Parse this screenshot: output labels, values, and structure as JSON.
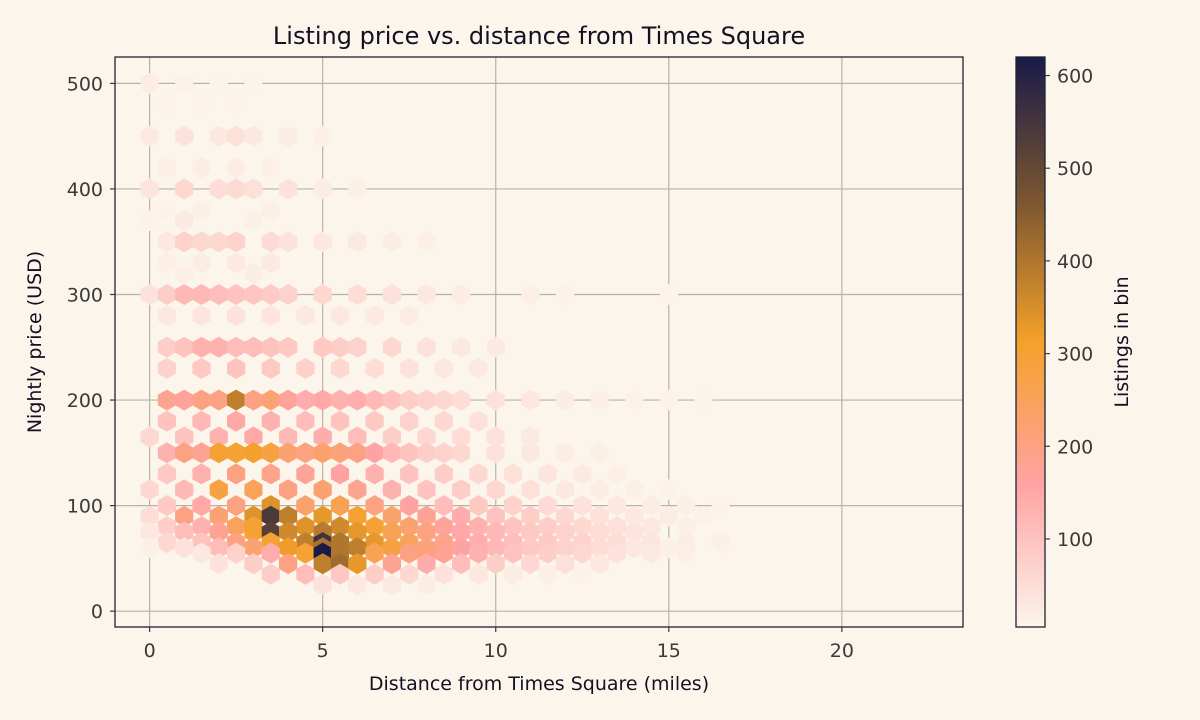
{
  "chart_data": {
    "type": "heatmap",
    "subtype": "hexbin",
    "title": "Listing price vs. distance from Times Square",
    "xlabel": "Distance from Times Square (miles)",
    "ylabel": "Nightly price (USD)",
    "xlim": [
      -1,
      23.5
    ],
    "ylim": [
      -15,
      525
    ],
    "xticks": [
      0,
      5,
      10,
      15,
      20
    ],
    "yticks": [
      0,
      100,
      200,
      300,
      400,
      500
    ],
    "grid": true,
    "colorbar": {
      "label": "Listings in bin",
      "range": [
        5,
        620
      ],
      "ticks": [
        100,
        200,
        300,
        400,
        500,
        600
      ],
      "colors": [
        "#fcf5eb",
        "#ffa3a3",
        "#f4a12a",
        "#7a5530",
        "#1a1a4a"
      ]
    },
    "bins": [
      [
        0,
        500,
        20
      ],
      [
        1,
        500,
        10
      ],
      [
        2,
        500,
        8
      ],
      [
        3,
        500,
        6
      ],
      [
        0.5,
        480,
        8
      ],
      [
        1.5,
        480,
        8
      ],
      [
        2.5,
        480,
        6
      ],
      [
        0,
        450,
        25
      ],
      [
        1,
        450,
        40
      ],
      [
        2,
        450,
        30
      ],
      [
        2.5,
        450,
        45
      ],
      [
        3,
        450,
        30
      ],
      [
        4,
        450,
        20
      ],
      [
        5,
        450,
        15
      ],
      [
        0.5,
        420,
        15
      ],
      [
        1.5,
        420,
        20
      ],
      [
        2.5,
        420,
        20
      ],
      [
        3.5,
        420,
        15
      ],
      [
        0,
        400,
        35
      ],
      [
        1,
        400,
        60
      ],
      [
        2,
        400,
        50
      ],
      [
        2.5,
        400,
        55
      ],
      [
        3,
        400,
        45
      ],
      [
        4,
        400,
        40
      ],
      [
        5,
        400,
        20
      ],
      [
        6,
        400,
        15
      ],
      [
        0.5,
        380,
        10
      ],
      [
        1.5,
        380,
        15
      ],
      [
        3.5,
        380,
        15
      ],
      [
        0,
        370,
        10
      ],
      [
        1,
        370,
        25
      ],
      [
        3,
        370,
        15
      ],
      [
        0.5,
        350,
        30
      ],
      [
        1,
        350,
        70
      ],
      [
        1.5,
        350,
        60
      ],
      [
        2,
        350,
        60
      ],
      [
        2.5,
        350,
        70
      ],
      [
        3.5,
        350,
        55
      ],
      [
        4,
        350,
        40
      ],
      [
        5,
        350,
        30
      ],
      [
        6,
        350,
        25
      ],
      [
        7,
        350,
        20
      ],
      [
        8,
        350,
        15
      ],
      [
        0.5,
        330,
        15
      ],
      [
        1.5,
        330,
        20
      ],
      [
        2.5,
        330,
        25
      ],
      [
        3.5,
        330,
        25
      ],
      [
        1,
        320,
        15
      ],
      [
        3,
        320,
        20
      ],
      [
        0,
        300,
        40
      ],
      [
        0.5,
        300,
        80
      ],
      [
        1,
        300,
        120
      ],
      [
        1.5,
        300,
        120
      ],
      [
        2,
        300,
        110
      ],
      [
        2.5,
        300,
        100
      ],
      [
        3,
        300,
        95
      ],
      [
        3.5,
        300,
        85
      ],
      [
        4,
        300,
        70
      ],
      [
        5,
        300,
        60
      ],
      [
        6,
        300,
        50
      ],
      [
        7,
        300,
        40
      ],
      [
        8,
        300,
        30
      ],
      [
        9,
        300,
        20
      ],
      [
        11,
        300,
        15
      ],
      [
        12,
        300,
        10
      ],
      [
        15,
        300,
        8
      ],
      [
        0.5,
        280,
        30
      ],
      [
        1.5,
        280,
        35
      ],
      [
        2.5,
        280,
        40
      ],
      [
        3.5,
        280,
        35
      ],
      [
        4.5,
        280,
        30
      ],
      [
        5.5,
        280,
        30
      ],
      [
        6.5,
        280,
        25
      ],
      [
        7.5,
        280,
        20
      ],
      [
        0.5,
        250,
        80
      ],
      [
        1,
        250,
        100
      ],
      [
        1.5,
        250,
        130
      ],
      [
        2,
        250,
        130
      ],
      [
        2.5,
        250,
        110
      ],
      [
        3,
        250,
        110
      ],
      [
        3.5,
        250,
        100
      ],
      [
        4,
        250,
        90
      ],
      [
        5,
        250,
        90
      ],
      [
        5.5,
        250,
        80
      ],
      [
        6,
        250,
        70
      ],
      [
        7,
        250,
        60
      ],
      [
        8,
        250,
        40
      ],
      [
        9,
        250,
        30
      ],
      [
        10,
        250,
        25
      ],
      [
        0.5,
        230,
        70
      ],
      [
        1.5,
        230,
        90
      ],
      [
        2.5,
        230,
        100
      ],
      [
        3.5,
        230,
        90
      ],
      [
        4.5,
        230,
        75
      ],
      [
        5.5,
        230,
        60
      ],
      [
        6.5,
        230,
        50
      ],
      [
        7.5,
        230,
        40
      ],
      [
        8.5,
        230,
        30
      ],
      [
        9.5,
        230,
        25
      ],
      [
        0.5,
        200,
        180
      ],
      [
        1,
        200,
        170
      ],
      [
        1.5,
        200,
        200
      ],
      [
        2,
        200,
        200
      ],
      [
        2.5,
        200,
        380
      ],
      [
        3,
        200,
        200
      ],
      [
        3.5,
        200,
        220
      ],
      [
        4,
        200,
        170
      ],
      [
        4.5,
        200,
        140
      ],
      [
        5,
        200,
        150
      ],
      [
        5.5,
        200,
        130
      ],
      [
        6,
        200,
        140
      ],
      [
        6.5,
        200,
        120
      ],
      [
        7,
        200,
        100
      ],
      [
        7.5,
        200,
        80
      ],
      [
        8,
        200,
        70
      ],
      [
        8.5,
        200,
        60
      ],
      [
        9,
        200,
        50
      ],
      [
        10,
        200,
        40
      ],
      [
        11,
        200,
        30
      ],
      [
        12,
        200,
        20
      ],
      [
        13,
        200,
        15
      ],
      [
        14,
        200,
        10
      ],
      [
        15,
        200,
        10
      ],
      [
        16,
        200,
        8
      ],
      [
        0.5,
        180,
        100
      ],
      [
        1.5,
        180,
        120
      ],
      [
        2.5,
        180,
        150
      ],
      [
        3.5,
        180,
        130
      ],
      [
        4.5,
        180,
        110
      ],
      [
        5.5,
        180,
        100
      ],
      [
        6.5,
        180,
        90
      ],
      [
        7.5,
        180,
        70
      ],
      [
        8.5,
        180,
        60
      ],
      [
        9.5,
        180,
        45
      ],
      [
        0,
        165,
        60
      ],
      [
        1,
        165,
        100
      ],
      [
        2,
        165,
        130
      ],
      [
        3,
        165,
        150
      ],
      [
        4,
        165,
        120
      ],
      [
        5,
        165,
        140
      ],
      [
        6,
        165,
        110
      ],
      [
        7,
        165,
        80
      ],
      [
        8,
        165,
        60
      ],
      [
        9,
        165,
        50
      ],
      [
        10,
        165,
        40
      ],
      [
        11,
        165,
        25
      ],
      [
        0.5,
        150,
        130
      ],
      [
        1,
        150,
        200
      ],
      [
        1.5,
        150,
        180
      ],
      [
        2,
        150,
        300
      ],
      [
        2.5,
        150,
        300
      ],
      [
        3,
        150,
        310
      ],
      [
        3.5,
        150,
        280
      ],
      [
        4,
        150,
        220
      ],
      [
        4.5,
        150,
        200
      ],
      [
        5,
        150,
        230
      ],
      [
        5.5,
        150,
        210
      ],
      [
        6,
        150,
        200
      ],
      [
        6.5,
        150,
        160
      ],
      [
        7,
        150,
        120
      ],
      [
        7.5,
        150,
        100
      ],
      [
        8,
        150,
        80
      ],
      [
        8.5,
        150,
        70
      ],
      [
        9,
        150,
        60
      ],
      [
        10,
        150,
        40
      ],
      [
        11,
        150,
        30
      ],
      [
        12,
        150,
        20
      ],
      [
        13,
        150,
        15
      ],
      [
        0.5,
        130,
        90
      ],
      [
        1.5,
        130,
        130
      ],
      [
        2.5,
        130,
        200
      ],
      [
        3.5,
        130,
        190
      ],
      [
        4.5,
        130,
        170
      ],
      [
        5.5,
        130,
        160
      ],
      [
        6.5,
        130,
        130
      ],
      [
        7.5,
        130,
        100
      ],
      [
        8.5,
        130,
        80
      ],
      [
        9.5,
        130,
        60
      ],
      [
        10.5,
        130,
        45
      ],
      [
        11.5,
        130,
        35
      ],
      [
        12.5,
        130,
        25
      ],
      [
        13.5,
        130,
        15
      ],
      [
        0,
        115,
        60
      ],
      [
        1,
        115,
        120
      ],
      [
        2,
        115,
        280
      ],
      [
        3,
        115,
        250
      ],
      [
        4,
        115,
        200
      ],
      [
        5,
        115,
        220
      ],
      [
        6,
        115,
        180
      ],
      [
        7,
        115,
        130
      ],
      [
        8,
        115,
        100
      ],
      [
        9,
        115,
        80
      ],
      [
        10,
        115,
        60
      ],
      [
        11,
        115,
        45
      ],
      [
        12,
        115,
        30
      ],
      [
        13,
        115,
        20
      ],
      [
        14,
        115,
        15
      ],
      [
        15,
        115,
        10
      ],
      [
        0.5,
        100,
        90
      ],
      [
        1.5,
        100,
        150
      ],
      [
        2.5,
        100,
        200
      ],
      [
        3.5,
        100,
        340
      ],
      [
        4.5,
        100,
        230
      ],
      [
        5.5,
        100,
        260
      ],
      [
        6.5,
        100,
        200
      ],
      [
        7.5,
        100,
        160
      ],
      [
        8.5,
        100,
        110
      ],
      [
        9.5,
        100,
        90
      ],
      [
        10.5,
        100,
        70
      ],
      [
        11.5,
        100,
        55
      ],
      [
        12.5,
        100,
        40
      ],
      [
        13.5,
        100,
        30
      ],
      [
        14.5,
        100,
        20
      ],
      [
        15.5,
        100,
        15
      ],
      [
        16.5,
        100,
        10
      ],
      [
        0,
        90,
        50
      ],
      [
        1,
        90,
        200
      ],
      [
        2,
        90,
        220
      ],
      [
        3,
        90,
        340
      ],
      [
        3.5,
        90,
        540
      ],
      [
        4,
        90,
        380
      ],
      [
        5,
        90,
        330
      ],
      [
        6,
        90,
        300
      ],
      [
        7,
        90,
        230
      ],
      [
        8,
        90,
        180
      ],
      [
        9,
        90,
        140
      ],
      [
        10,
        90,
        100
      ],
      [
        11,
        90,
        80
      ],
      [
        12,
        90,
        60
      ],
      [
        13,
        90,
        45
      ],
      [
        14,
        90,
        30
      ],
      [
        15,
        90,
        20
      ],
      [
        16,
        90,
        10
      ],
      [
        0.5,
        80,
        80
      ],
      [
        1.5,
        80,
        130
      ],
      [
        2.5,
        80,
        250
      ],
      [
        3,
        80,
        300
      ],
      [
        4.5,
        80,
        340
      ],
      [
        5.5,
        80,
        360
      ],
      [
        6.5,
        80,
        300
      ],
      [
        7.5,
        80,
        220
      ],
      [
        8.5,
        80,
        170
      ],
      [
        9.5,
        80,
        130
      ],
      [
        10.5,
        80,
        100
      ],
      [
        11.5,
        80,
        80
      ],
      [
        12.5,
        80,
        60
      ],
      [
        13.5,
        80,
        45
      ],
      [
        14.5,
        80,
        30
      ],
      [
        15.5,
        80,
        15
      ],
      [
        0,
        75,
        30
      ],
      [
        1,
        75,
        110
      ],
      [
        2,
        75,
        180
      ],
      [
        3,
        75,
        300
      ],
      [
        3.5,
        75,
        520
      ],
      [
        4,
        75,
        360
      ],
      [
        5,
        75,
        390
      ],
      [
        6,
        75,
        330
      ],
      [
        7,
        75,
        260
      ],
      [
        8,
        75,
        200
      ],
      [
        9,
        75,
        150
      ],
      [
        10,
        75,
        120
      ],
      [
        11,
        75,
        90
      ],
      [
        12,
        75,
        70
      ],
      [
        13,
        75,
        50
      ],
      [
        14,
        75,
        35
      ],
      [
        0.5,
        65,
        60
      ],
      [
        1.5,
        65,
        100
      ],
      [
        2.5,
        65,
        200
      ],
      [
        3.5,
        65,
        300
      ],
      [
        4.5,
        65,
        380
      ],
      [
        5,
        65,
        560
      ],
      [
        5.5,
        65,
        400
      ],
      [
        6.5,
        65,
        330
      ],
      [
        7.5,
        65,
        250
      ],
      [
        8.5,
        65,
        190
      ],
      [
        9.5,
        65,
        140
      ],
      [
        10.5,
        65,
        110
      ],
      [
        11.5,
        65,
        90
      ],
      [
        12.5,
        65,
        70
      ],
      [
        13.5,
        65,
        50
      ],
      [
        14.5,
        65,
        35
      ],
      [
        15.5,
        65,
        20
      ],
      [
        16.5,
        65,
        15
      ],
      [
        0,
        60,
        15
      ],
      [
        1,
        60,
        40
      ],
      [
        2,
        60,
        110
      ],
      [
        3,
        60,
        220
      ],
      [
        4,
        60,
        320
      ],
      [
        5,
        60,
        410
      ],
      [
        6,
        60,
        380
      ],
      [
        7,
        60,
        280
      ],
      [
        8,
        60,
        200
      ],
      [
        9,
        60,
        160
      ],
      [
        10,
        60,
        120
      ],
      [
        11,
        60,
        90
      ],
      [
        12,
        60,
        70
      ],
      [
        13,
        60,
        50
      ],
      [
        14,
        60,
        30
      ],
      [
        15,
        60,
        15
      ],
      [
        1.5,
        55,
        30
      ],
      [
        2.5,
        55,
        70
      ],
      [
        3.5,
        55,
        140
      ],
      [
        4.5,
        55,
        300
      ],
      [
        5,
        55,
        620
      ],
      [
        5.5,
        55,
        400
      ],
      [
        6.5,
        55,
        260
      ],
      [
        7.5,
        55,
        200
      ],
      [
        8,
        55,
        210
      ],
      [
        8.5,
        55,
        180
      ],
      [
        9.5,
        55,
        130
      ],
      [
        10.5,
        55,
        100
      ],
      [
        11.5,
        55,
        80
      ],
      [
        12.5,
        55,
        60
      ],
      [
        13.5,
        55,
        40
      ],
      [
        14.5,
        55,
        25
      ],
      [
        15.5,
        55,
        15
      ],
      [
        2,
        45,
        40
      ],
      [
        3,
        45,
        80
      ],
      [
        4,
        45,
        200
      ],
      [
        5,
        45,
        380
      ],
      [
        5.5,
        45,
        420
      ],
      [
        6,
        45,
        330
      ],
      [
        7,
        45,
        180
      ],
      [
        8,
        45,
        140
      ],
      [
        9,
        45,
        110
      ],
      [
        10,
        45,
        80
      ],
      [
        11,
        45,
        60
      ],
      [
        12,
        45,
        45
      ],
      [
        13,
        45,
        30
      ],
      [
        3.5,
        35,
        80
      ],
      [
        4.5,
        35,
        110
      ],
      [
        5.5,
        35,
        90
      ],
      [
        6.5,
        35,
        80
      ],
      [
        7.5,
        35,
        60
      ],
      [
        8.5,
        35,
        40
      ],
      [
        9.5,
        35,
        30
      ],
      [
        10.5,
        35,
        20
      ],
      [
        11.5,
        35,
        15
      ],
      [
        12.5,
        35,
        10
      ],
      [
        5,
        25,
        40
      ],
      [
        6,
        25,
        30
      ],
      [
        7,
        25,
        25
      ],
      [
        8,
        25,
        20
      ]
    ]
  }
}
